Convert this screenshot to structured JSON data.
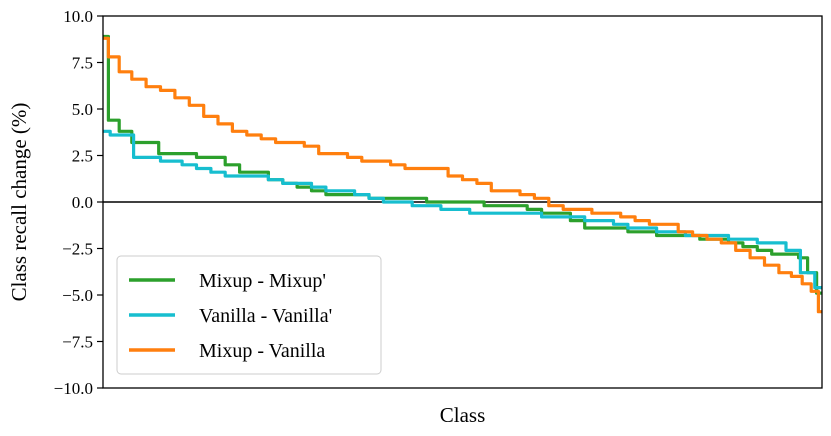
{
  "chart_data": {
    "type": "line",
    "title": "",
    "xlabel": "Class",
    "ylabel": "Class recall change (%)",
    "xlim": [
      0,
      100
    ],
    "ylim": [
      -10,
      10
    ],
    "yticks": [
      10.0,
      7.5,
      5.0,
      2.5,
      0.0,
      -2.5,
      -5.0,
      -7.5,
      -10.0
    ],
    "ytick_labels": [
      "10.0",
      "7.5",
      "5.0",
      "2.5",
      "0.0",
      "−2.5",
      "−5.0",
      "−7.5",
      "−10.0"
    ],
    "xticks": [],
    "grid": false,
    "reference_line_y": 0,
    "legend": {
      "position": "lower-left"
    },
    "series": [
      {
        "name": "Mixup - Mixup'",
        "color": "#2ca02c",
        "x": [
          0,
          1.5,
          3,
          5,
          7,
          8.5,
          10,
          12,
          14,
          16,
          18,
          20,
          22,
          24,
          26,
          28,
          30,
          32,
          34,
          36,
          38,
          40,
          42,
          44,
          46,
          48,
          50,
          52,
          54,
          56,
          58,
          60,
          62,
          64,
          66,
          68,
          70,
          72,
          74,
          76,
          78,
          80,
          82,
          84,
          86,
          88,
          90,
          92,
          94,
          96,
          97.5,
          98.5,
          100
        ],
        "y": [
          8.9,
          4.4,
          3.8,
          3.2,
          3.2,
          2.6,
          2.6,
          2.6,
          2.4,
          2.4,
          2.0,
          1.6,
          1.6,
          1.2,
          1.0,
          0.8,
          0.6,
          0.4,
          0.4,
          0.4,
          0.2,
          0.2,
          0.2,
          0.2,
          0.0,
          0.0,
          0.0,
          0.0,
          -0.2,
          -0.2,
          -0.2,
          -0.4,
          -0.6,
          -0.6,
          -1.0,
          -1.4,
          -1.4,
          -1.4,
          -1.6,
          -1.6,
          -1.8,
          -1.8,
          -1.8,
          -2.0,
          -2.0,
          -2.2,
          -2.4,
          -2.6,
          -2.8,
          -2.8,
          -3.0,
          -3.8,
          -4.9
        ]
      },
      {
        "name": "Vanilla - Vanilla'",
        "color": "#17becf",
        "x": [
          0,
          2,
          3.5,
          5,
          7,
          9,
          10,
          12,
          14,
          16,
          18,
          20,
          22,
          24,
          26,
          28,
          30,
          32,
          34,
          36,
          38,
          40,
          42,
          44,
          46,
          48,
          50,
          52,
          54,
          56,
          58,
          60,
          62,
          64,
          66,
          68,
          70,
          72,
          74,
          76,
          78,
          80,
          82,
          84,
          86,
          88,
          90,
          92,
          94,
          96,
          98,
          100
        ],
        "y": [
          3.8,
          3.6,
          3.6,
          2.4,
          2.4,
          2.2,
          2.2,
          2.0,
          1.8,
          1.6,
          1.4,
          1.4,
          1.4,
          1.2,
          1.0,
          1.0,
          0.8,
          0.6,
          0.6,
          0.4,
          0.2,
          0.0,
          0.0,
          -0.2,
          -0.2,
          -0.4,
          -0.4,
          -0.6,
          -0.6,
          -0.6,
          -0.6,
          -0.6,
          -0.8,
          -0.8,
          -0.8,
          -1.0,
          -1.0,
          -1.2,
          -1.4,
          -1.4,
          -1.6,
          -1.6,
          -1.8,
          -1.8,
          -1.8,
          -2.0,
          -2.0,
          -2.2,
          -2.2,
          -2.6,
          -3.8,
          -4.6
        ]
      },
      {
        "name": "Mixup - Vanilla",
        "color": "#ff7f0e",
        "x": [
          0,
          1.5,
          3,
          5,
          7,
          9,
          11,
          13,
          15,
          17,
          19,
          21,
          23,
          25,
          27,
          29,
          31,
          33,
          35,
          37,
          39,
          41,
          43,
          45,
          47,
          49,
          51,
          53,
          55,
          57,
          59,
          61,
          63,
          65,
          67,
          69,
          71,
          73,
          75,
          77,
          79,
          81,
          83,
          85,
          87,
          89,
          91,
          93,
          95,
          96.5,
          98,
          99,
          100
        ],
        "y": [
          8.8,
          7.8,
          7.0,
          6.6,
          6.2,
          6.0,
          5.6,
          5.2,
          4.6,
          4.2,
          3.8,
          3.6,
          3.4,
          3.2,
          3.2,
          3.0,
          2.6,
          2.6,
          2.4,
          2.2,
          2.2,
          2.0,
          1.8,
          1.8,
          1.8,
          1.4,
          1.2,
          1.0,
          0.6,
          0.6,
          0.4,
          0.2,
          -0.2,
          -0.4,
          -0.4,
          -0.6,
          -0.6,
          -0.8,
          -1.0,
          -1.2,
          -1.2,
          -1.6,
          -1.8,
          -2.0,
          -2.2,
          -2.6,
          -3.0,
          -3.4,
          -3.8,
          -4.0,
          -4.4,
          -4.8,
          -5.9
        ]
      }
    ]
  }
}
